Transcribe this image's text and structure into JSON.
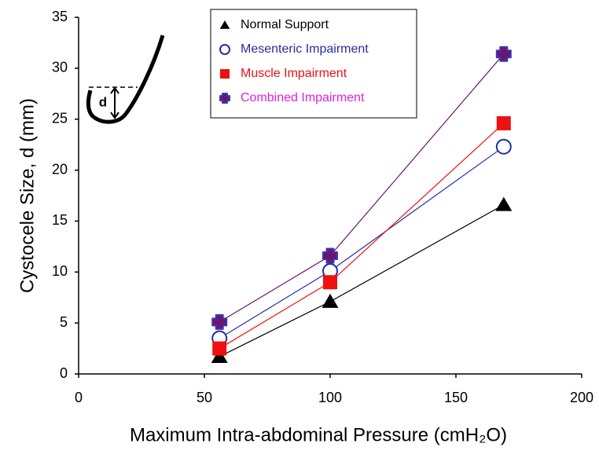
{
  "chart_data": {
    "type": "line",
    "x_label": "Maximum Intra-abdominal Pressure (cmH₂O)",
    "y_label": "Cystocele Size, d (mm)",
    "inset_label": "d",
    "x": [
      56,
      100,
      169
    ],
    "series": [
      {
        "name": "Normal Support",
        "color": "#000000",
        "label_color": "#000000",
        "marker": "triangle",
        "values": [
          1.7,
          7.1,
          16.6
        ]
      },
      {
        "name": "Mesenteric Impairment",
        "color": "#1f2fa8",
        "label_color": "#2a2aa0",
        "marker": "circle-open",
        "values": [
          3.5,
          10.1,
          22.3
        ]
      },
      {
        "name": "Muscle Impairment",
        "color": "#ee1111",
        "label_color": "#ee1111",
        "marker": "square",
        "values": [
          2.5,
          9.0,
          24.6
        ]
      },
      {
        "name": "Combined Impairment",
        "color": "#6a1670",
        "label_color": "#e020e0",
        "marker": "cross",
        "values": [
          5.1,
          11.6,
          31.4
        ]
      }
    ],
    "xlim": [
      0,
      200
    ],
    "xticks": [
      0,
      50,
      100,
      150,
      200
    ],
    "ylim": [
      0,
      35
    ],
    "yticks": [
      0,
      5,
      10,
      15,
      20,
      25,
      30,
      35
    ],
    "grid": false,
    "legend": "upper center"
  }
}
